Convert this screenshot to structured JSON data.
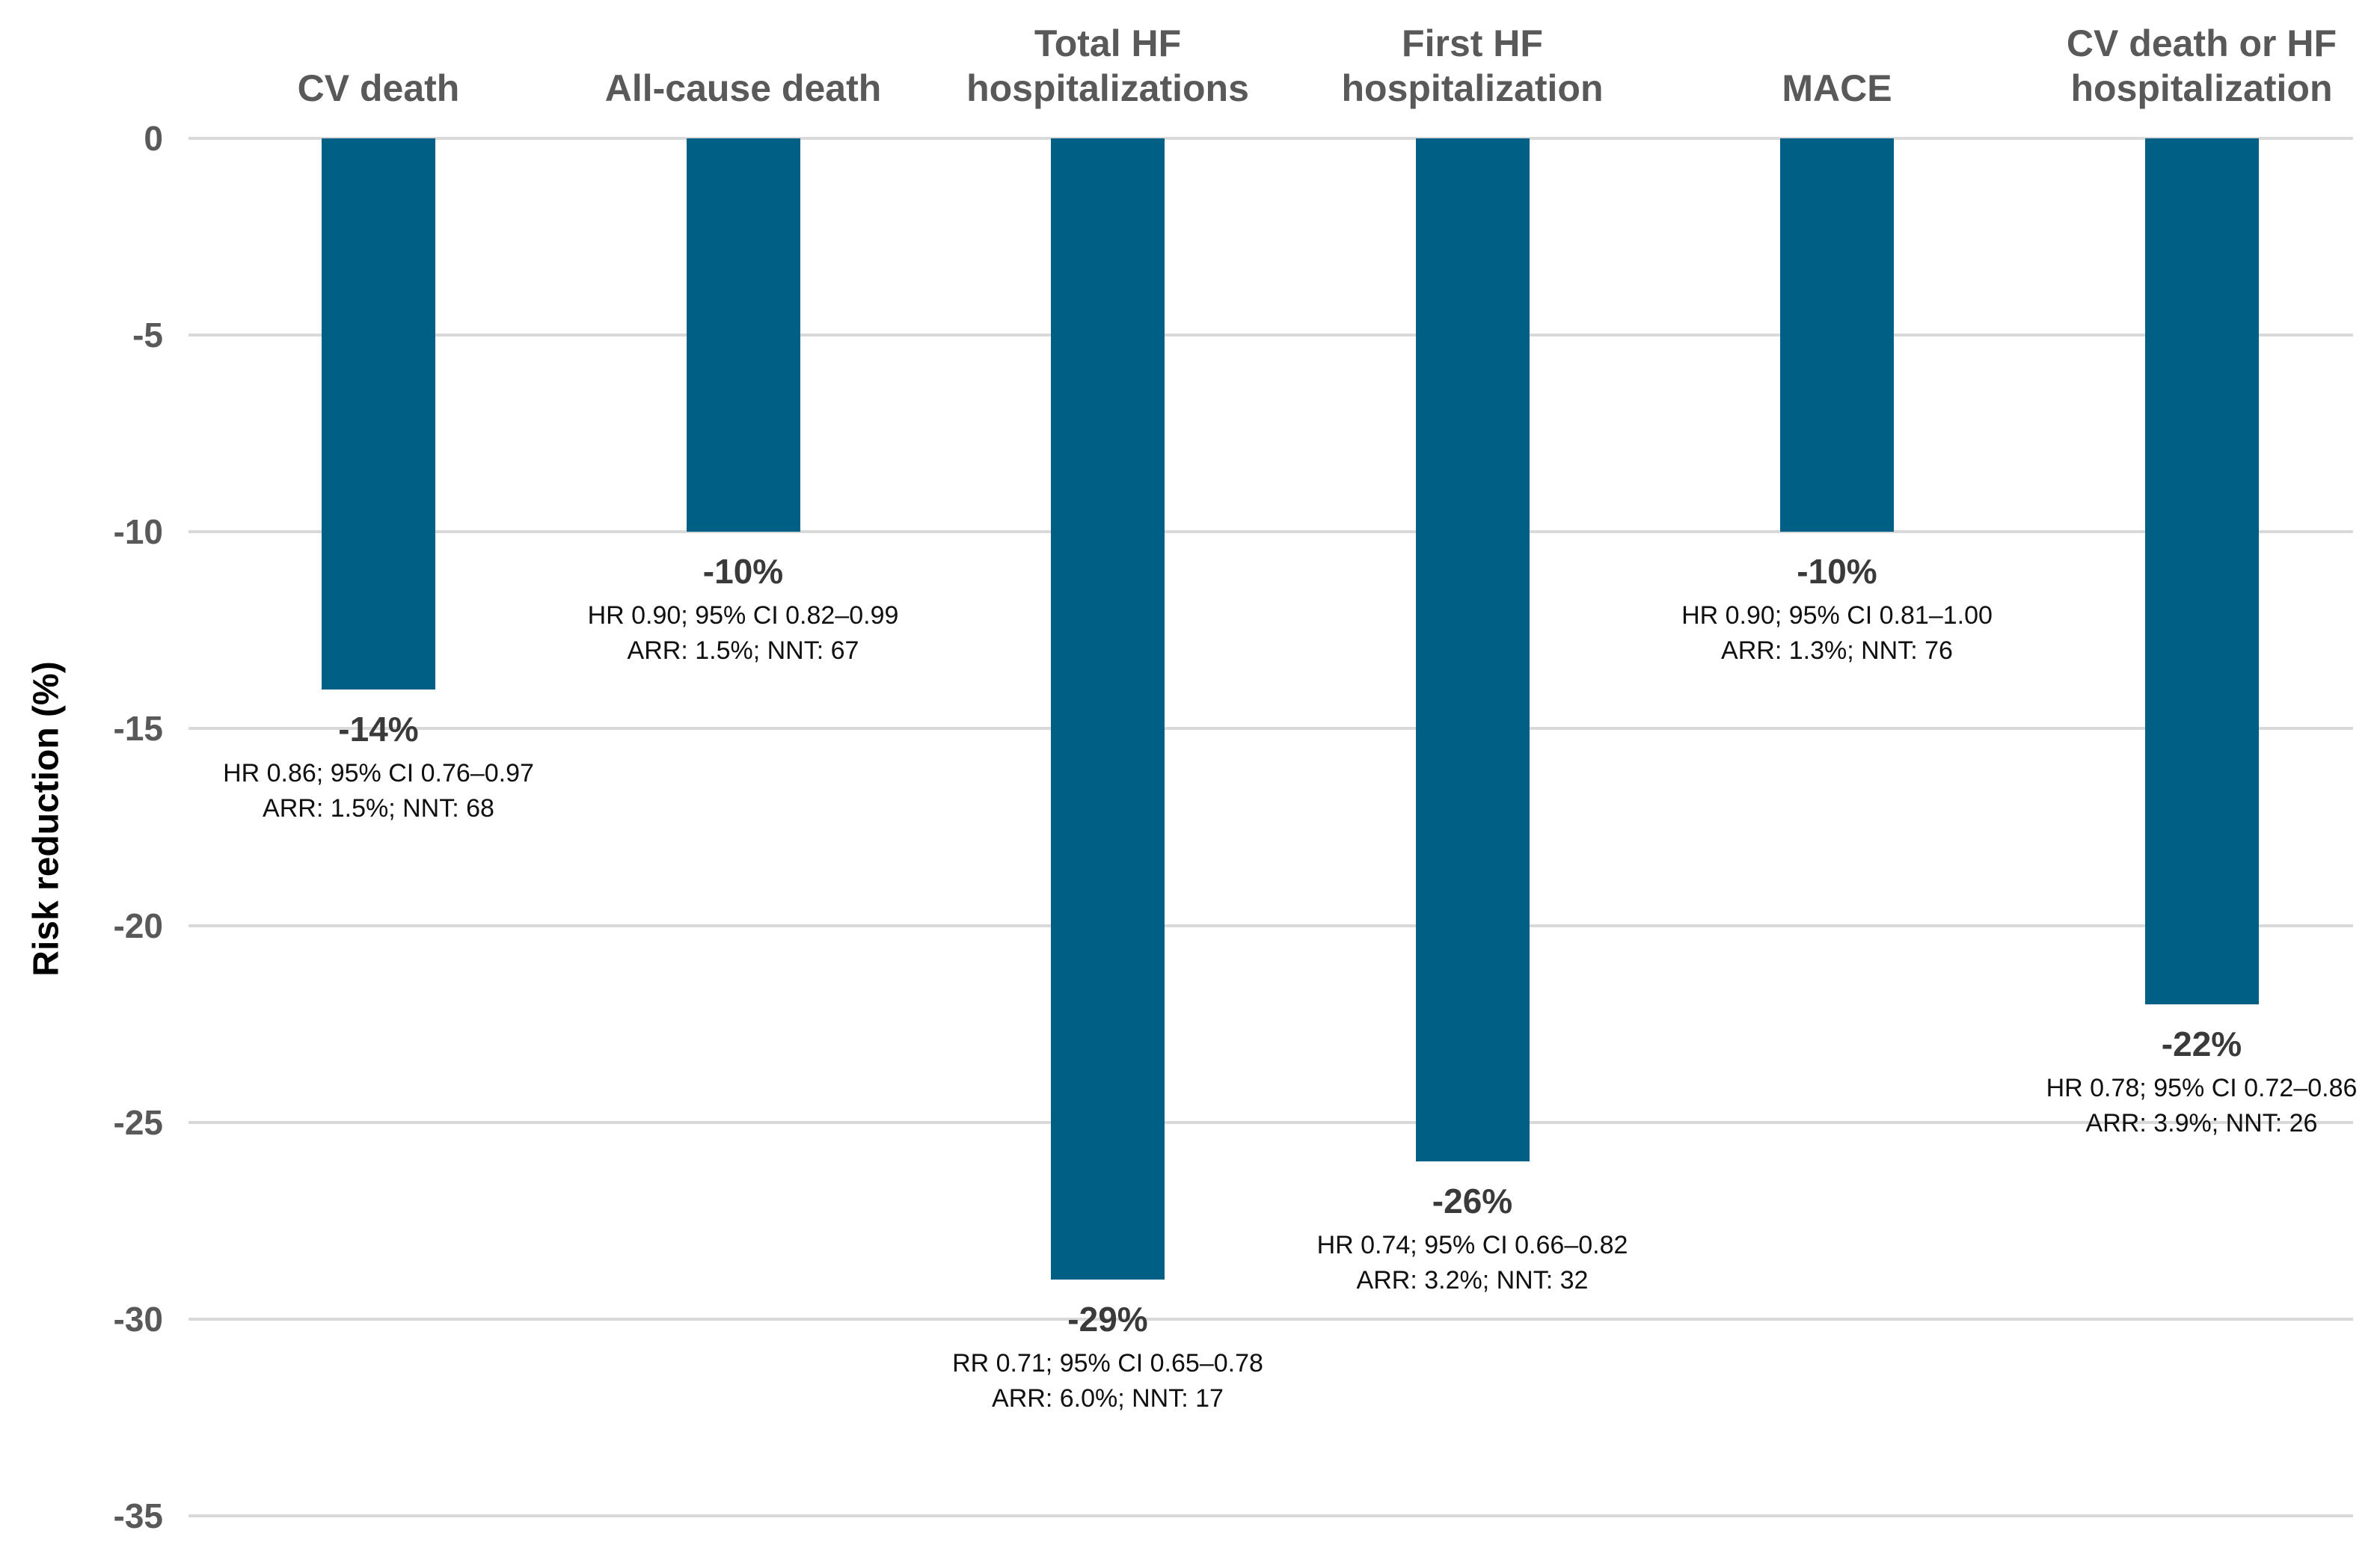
{
  "chart_data": {
    "type": "bar",
    "title": "",
    "xlabel": "",
    "ylabel": "Risk reduction (%)",
    "ylim": [
      -35,
      0
    ],
    "yticks": [
      0,
      -5,
      -10,
      -15,
      -20,
      -25,
      -30,
      -35
    ],
    "ytick_labels": [
      "0",
      "-5",
      "-10",
      "-15",
      "-20",
      "-25",
      "-30",
      "-35"
    ],
    "grid": "horizontal",
    "legend": "none",
    "bar_color": "#005F84",
    "gridline_color": "#D9D9D9",
    "label_color": "#595959",
    "categories": [
      "CV death",
      "All-cause death",
      "Total HF hospitalizations",
      "First HF hospitalization",
      "MACE",
      "CV death or HF hospitalization"
    ],
    "values": [
      -14,
      -10,
      -29,
      -26,
      -10,
      -22
    ],
    "bars": [
      {
        "label": "CV death",
        "label_display": "CV death",
        "value": -14,
        "value_label": "-14%",
        "stat_line1": "HR 0.86; 95% CI 0.76–0.97",
        "stat_line2": "ARR: 1.5%; NNT: 68"
      },
      {
        "label": "All-cause death",
        "label_display": "All-cause death",
        "value": -10,
        "value_label": "-10%",
        "stat_line1": "HR 0.90; 95% CI 0.82–0.99",
        "stat_line2": "ARR: 1.5%; NNT: 67"
      },
      {
        "label": "Total HF hospitalizations",
        "label_display": "Total HF\nhospitalizations",
        "value": -29,
        "value_label": "-29%",
        "stat_line1": "RR 0.71; 95% CI 0.65–0.78",
        "stat_line2": "ARR: 6.0%; NNT: 17"
      },
      {
        "label": "First HF hospitalization",
        "label_display": "First HF\nhospitalization",
        "value": -26,
        "value_label": "-26%",
        "stat_line1": "HR 0.74; 95% CI 0.66–0.82",
        "stat_line2": "ARR: 3.2%; NNT: 32"
      },
      {
        "label": "MACE",
        "label_display": "MACE",
        "value": -10,
        "value_label": "-10%",
        "stat_line1": "HR 0.90; 95% CI 0.81–1.00",
        "stat_line2": "ARR: 1.3%; NNT: 76"
      },
      {
        "label": "CV death or HF hospitalization",
        "label_display": "CV death or HF\nhospitalization",
        "value": -22,
        "value_label": "-22%",
        "stat_line1": "HR 0.78; 95% CI 0.72–0.86",
        "stat_line2": "ARR: 3.9%; NNT: 26"
      }
    ]
  }
}
